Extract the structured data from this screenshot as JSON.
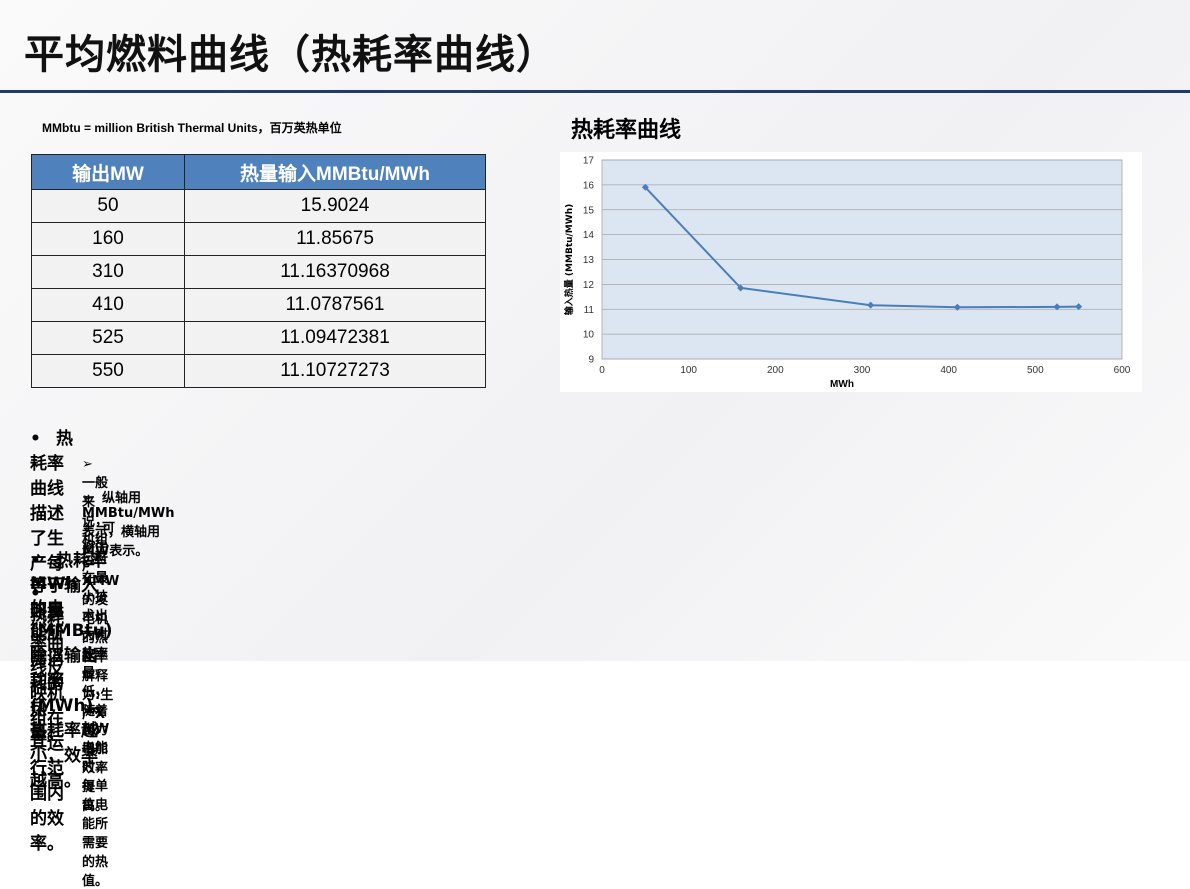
{
  "title": "平均燃料曲线（热耗率曲线）",
  "note": "MMbtu = million British Thermal Units，百万英热单位",
  "table": {
    "headers": [
      "输出MW",
      "热量输入MMBtu/MWh"
    ],
    "rows": [
      [
        "50",
        "15.9024"
      ],
      [
        "160",
        "11.85675"
      ],
      [
        "310",
        "11.16370968"
      ],
      [
        "410",
        "11.0787561"
      ],
      [
        "525",
        "11.09472381"
      ],
      [
        "550",
        "11.10727273"
      ]
    ]
  },
  "chart_title": "热耗率曲线",
  "chart_data": {
    "type": "line",
    "title": "",
    "xlabel": "MWh",
    "ylabel": "输入热量 (MMBtu/MWh)",
    "xlim": [
      0,
      600
    ],
    "ylim": [
      9,
      17
    ],
    "xticks": [
      0,
      100,
      200,
      300,
      400,
      500,
      600
    ],
    "yticks": [
      9,
      10,
      11,
      12,
      13,
      14,
      15,
      16,
      17
    ],
    "grid": true,
    "x": [
      50,
      160,
      310,
      410,
      525,
      550
    ],
    "y": [
      15.9024,
      11.85675,
      11.16370968,
      11.0787561,
      11.09472381,
      11.10727273
    ],
    "color": "#4a7ebb"
  },
  "bullets": [
    {
      "text": "热耗率曲线描述了生产每MWh 的电能所需消耗的热量。",
      "subs": [
        "一般来说，机组运行在最小技术出力时效率最低，随着出力增加效率提高。",
        "纵轴用MMBtu/MWh表示，横轴用MW表示。",
        "可将生产XMW的发电机的热耗率解释为:生产X MW电能时，每单位电能所需要的热值。"
      ]
    },
    {
      "text": "热耗率等于输入热量(MMBtu)除以输出功率(MWh)。热耗率越小，效率越高。",
      "subs": []
    },
    {
      "text": "热耗率曲线反映机组在其运行范围内的效率。",
      "subs": []
    }
  ],
  "bullet_glyph": "•",
  "sub_glyph": "➢"
}
